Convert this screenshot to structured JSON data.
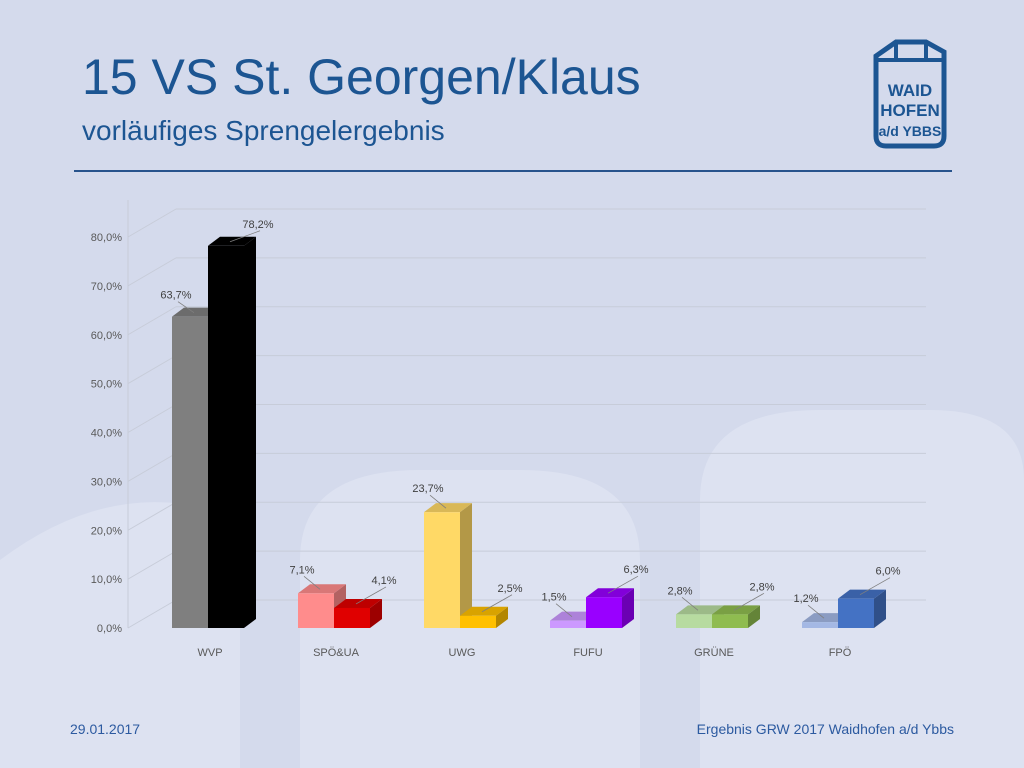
{
  "header": {
    "title": "15 VS St. Georgen/Klaus",
    "subtitle": "vorläufiges Sprengelergebnis"
  },
  "logo": {
    "lines": [
      "WAID",
      "HOFEN",
      "a/d YBBS"
    ]
  },
  "footer": {
    "date": "29.01.2017",
    "source": "Ergebnis GRW 2017 Waidhofen a/d Ybbs"
  },
  "colors": {
    "background": "#d4daec",
    "title": "#1c5592",
    "rule": "#27538c",
    "footer": "#2c5aa0"
  },
  "chart_data": {
    "type": "bar",
    "title": "",
    "xlabel": "",
    "ylabel": "",
    "ylim": [
      0,
      80
    ],
    "yticks": [
      "0,0%",
      "10,0%",
      "20,0%",
      "30,0%",
      "40,0%",
      "50,0%",
      "60,0%",
      "70,0%",
      "80,0%"
    ],
    "grid": true,
    "legend": "none",
    "categories": [
      "WVP",
      "SPÖ&UA",
      "UWG",
      "FUFU",
      "GRÜNE",
      "FPÖ"
    ],
    "series": [
      {
        "values": [
          63.7,
          7.1,
          23.7,
          1.5,
          2.8,
          1.2
        ],
        "labels": [
          "63,7%",
          "7,1%",
          "23,7%",
          "1,5%",
          "2,8%",
          "1,2%"
        ],
        "colors": [
          "#7f7f7f",
          "#ff8c8c",
          "#ffd966",
          "#cc99ff",
          "#b7dba0",
          "#a4b8e4"
        ]
      },
      {
        "values": [
          78.2,
          4.1,
          2.5,
          6.3,
          2.8,
          6.0
        ],
        "labels": [
          "78,2%",
          "4,1%",
          "2,5%",
          "6,3%",
          "2,8%",
          "6,0%"
        ],
        "colors": [
          "#000000",
          "#e00000",
          "#ffc000",
          "#9900ff",
          "#8fbc50",
          "#4472c4"
        ]
      }
    ]
  }
}
